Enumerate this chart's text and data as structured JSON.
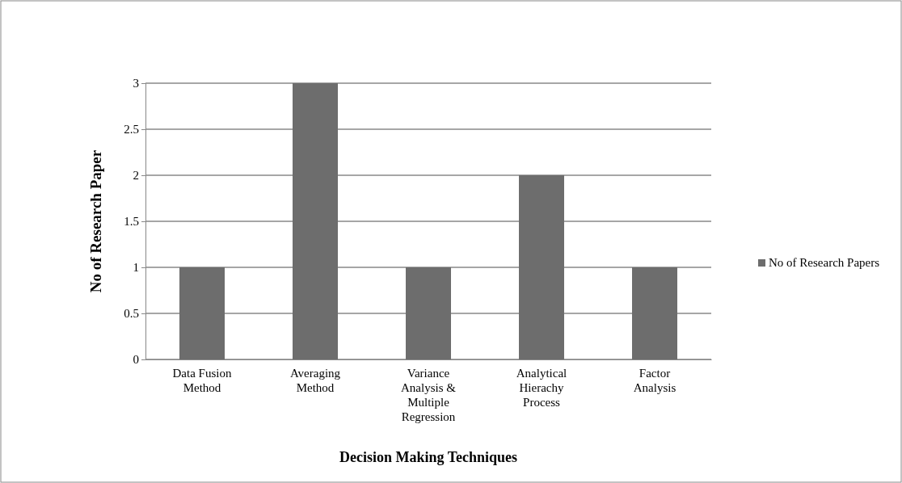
{
  "chart_data": {
    "type": "bar",
    "xlabel": "Decision Making Techniques",
    "ylabel": "No of Research Paper",
    "categories": [
      "Data Fusion Method",
      "Averaging Method",
      "Variance Analysis & Multiple Regression",
      "Analytical Hierachy Process",
      "Factor Analysis"
    ],
    "series": [
      {
        "name": "No of Research Papers",
        "color": "#6d6d6d",
        "values": [
          1,
          3,
          1,
          2,
          1
        ]
      }
    ],
    "ylim": [
      0,
      3
    ],
    "yticks": [
      0,
      0.5,
      1,
      1.5,
      2,
      2.5,
      3
    ],
    "grid": "y",
    "legend": "right"
  }
}
